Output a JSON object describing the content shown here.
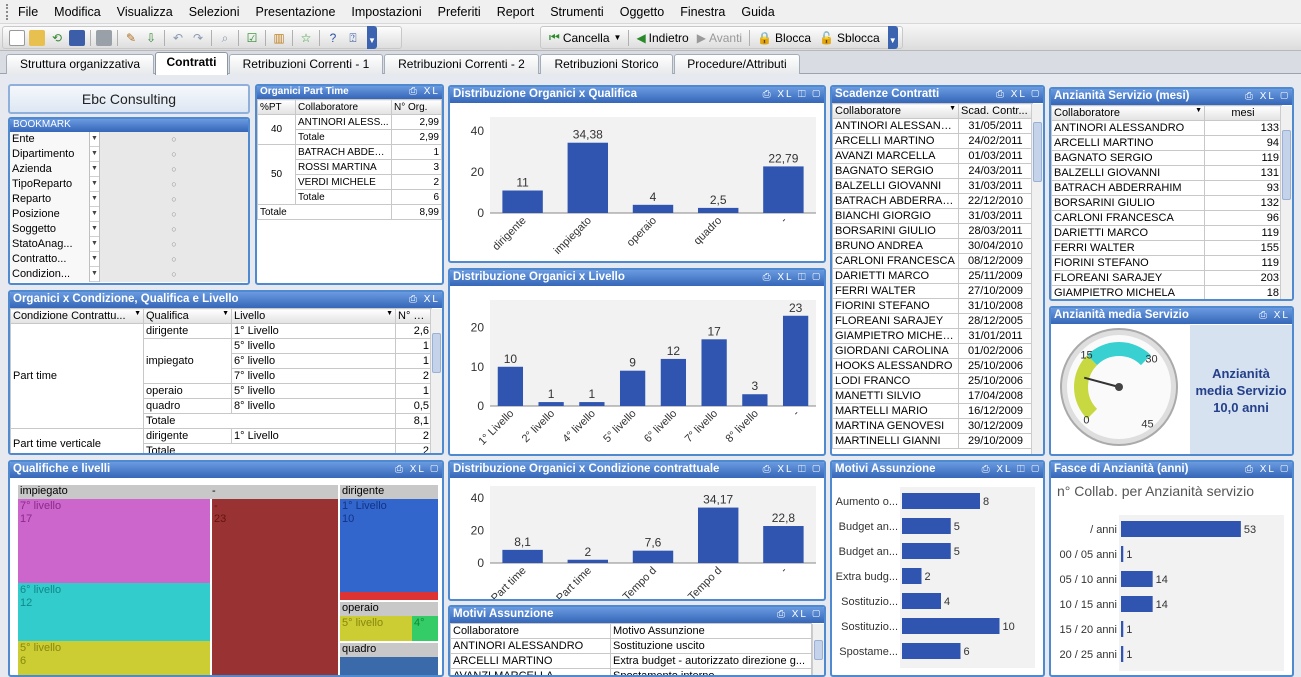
{
  "menu": [
    "File",
    "Modifica",
    "Visualizza",
    "Selezioni",
    "Presentazione",
    "Impostazioni",
    "Preferiti",
    "Report",
    "Strumenti",
    "Oggetto",
    "Finestra",
    "Guida"
  ],
  "toolbar2": {
    "cancella": "Cancella",
    "indietro": "Indietro",
    "avanti": "Avanti",
    "blocca": "Blocca",
    "sblocca": "Sblocca"
  },
  "tabs": [
    "Struttura organizzativa",
    "Contratti",
    "Retribuzioni Correnti - 1",
    "Retribuzioni Correnti - 2",
    "Retribuzioni Storico",
    "Procedure/Attributi"
  ],
  "active_tab": "Contratti",
  "company": "Ebc Consulting",
  "bookmark": {
    "title": "BOOKMARK",
    "items": [
      "Ente",
      "Dipartimento",
      "Azienda",
      "TipoReparto",
      "Reparto",
      "Posizione",
      "Soggetto",
      "StatoAnag...",
      "Contratto...",
      "Condizion..."
    ]
  },
  "part_time": {
    "title": "Organici Part Time",
    "headers": [
      "%PT",
      "Collaboratore",
      "N° Org."
    ],
    "rows": [
      [
        "40",
        "ANTINORI ALESS...",
        "2,99"
      ],
      [
        "",
        "Totale",
        "2,99"
      ],
      [
        "50",
        "BATRACH ABDERR...",
        "1"
      ],
      [
        "",
        "ROSSI MARTINA",
        "3"
      ],
      [
        "",
        "VERDI MICHELE",
        "2"
      ],
      [
        "",
        "Totale",
        "6"
      ]
    ],
    "total_label": "Totale",
    "total_value": "8,99"
  },
  "condizione": {
    "title": "Organici x Condizione, Qualifica e Livello",
    "headers": [
      "Condizione Contrattu...",
      "Qualifica",
      "Livello",
      "N° Org."
    ],
    "g1": "Part time",
    "g2": "Part time verticale",
    "rows": [
      [
        "dirigente",
        "1° Livello",
        "2,6"
      ],
      [
        "impiegato",
        "5° livello",
        "1"
      ],
      [
        "",
        "6° livello",
        "1"
      ],
      [
        "",
        "7° livello",
        "2"
      ],
      [
        "operaio",
        "5° livello",
        "1"
      ],
      [
        "quadro",
        "8° livello",
        "0,5"
      ],
      [
        "Totale",
        "",
        "8,1"
      ],
      [
        "dirigente",
        "1° Livello",
        "2"
      ],
      [
        "Totale",
        "",
        "2"
      ]
    ]
  },
  "qualifiche": {
    "title": "Qualifiche e livelli",
    "blocks": {
      "impiegato": "impiegato",
      "dash": "-",
      "dirigente": "dirigente",
      "l7": "7° livello",
      "v17": "17",
      "d23": "-",
      "v23": "23",
      "l1": "1° Livello",
      "v10": "10",
      "l6": "6° livello",
      "v12": "12",
      "operaio": "operaio",
      "o5": "5° livello",
      "o4": "4°",
      "l5": "5° livello",
      "v6": "6",
      "quadro": "quadro"
    }
  },
  "charts": [
    {
      "id": "qualifica",
      "title": "Distribuzione Organici x Qualifica",
      "type": "bar",
      "categories": [
        "dirigente",
        "impiegato",
        "operaio",
        "quadro",
        "-"
      ],
      "values": [
        11,
        34.38,
        4,
        2.5,
        22.79
      ],
      "labels": [
        "11",
        "34,38",
        "4",
        "2,5",
        "22,79"
      ],
      "ylim": [
        0,
        45
      ],
      "yticks": [
        0,
        20,
        40
      ]
    },
    {
      "id": "livello",
      "title": "Distribuzione Organici x Livello",
      "type": "bar",
      "categories": [
        "1° Livello",
        "2° livello",
        "4° livello",
        "5° livello",
        "6° livello",
        "7° livello",
        "8° livello",
        "-"
      ],
      "values": [
        10,
        1,
        1,
        9,
        12,
        17,
        3,
        23
      ],
      "labels": [
        "10",
        "1",
        "1",
        "9",
        "12",
        "17",
        "3",
        "23"
      ],
      "ylim": [
        0,
        26
      ],
      "yticks": [
        0,
        10,
        20
      ]
    },
    {
      "id": "condizione",
      "title": "Distribuzione Organici x Condizione contrattuale",
      "type": "bar",
      "categories": [
        "Part time",
        "Part time",
        "Tempo d",
        "Tempo d",
        "-"
      ],
      "values": [
        8.1,
        2,
        7.6,
        34.17,
        22.8
      ],
      "labels": [
        "8,1",
        "2",
        "7,6",
        "34,17",
        "22,8"
      ],
      "ylim": [
        0,
        45
      ],
      "yticks": [
        0,
        20,
        40
      ]
    }
  ],
  "scadenze": {
    "title": "Scadenze Contratti",
    "headers": [
      "Collaboratore",
      "Scad. Contr..."
    ],
    "rows": [
      [
        "ANTINORI ALESSANDRO",
        "31/05/2011"
      ],
      [
        "ARCELLI MARTINO",
        "24/02/2011"
      ],
      [
        "AVANZI MARCELLA",
        "01/03/2011"
      ],
      [
        "BAGNATO SERGIO",
        "24/03/2011"
      ],
      [
        "BALZELLI GIOVANNI",
        "31/03/2011"
      ],
      [
        "BATRACH ABDERRAHIM",
        "22/12/2010"
      ],
      [
        "BIANCHI GIORGIO",
        "31/03/2011"
      ],
      [
        "BORSARINI GIULIO",
        "28/03/2011"
      ],
      [
        "BRUNO ANDREA",
        "30/04/2010"
      ],
      [
        "CARLONI FRANCESCA",
        "08/12/2009"
      ],
      [
        "DARIETTI MARCO",
        "25/11/2009"
      ],
      [
        "FERRI WALTER",
        "27/10/2009"
      ],
      [
        "FIORINI STEFANO",
        "31/10/2008"
      ],
      [
        "FLOREANI SARAJEY",
        "28/12/2005"
      ],
      [
        "GIAMPIETRO MICHELA",
        "31/01/2011"
      ],
      [
        "GIORDANI CAROLINA",
        "01/02/2006"
      ],
      [
        "HOOKS ALESSANDRO",
        "25/10/2006"
      ],
      [
        "LODI FRANCO",
        "25/10/2006"
      ],
      [
        "MANETTI SILVIO",
        "17/04/2008"
      ],
      [
        "MARTELLI MARIO",
        "16/12/2009"
      ],
      [
        "MARTINA GENOVESI",
        "30/12/2009"
      ],
      [
        "MARTINELLI GIANNI",
        "29/10/2009"
      ]
    ]
  },
  "anzianita": {
    "title": "Anzianità Servizio (mesi)",
    "headers": [
      "Collaboratore",
      "mesi"
    ],
    "rows": [
      [
        "ANTINORI ALESSANDRO",
        "133"
      ],
      [
        "ARCELLI MARTINO",
        "94"
      ],
      [
        "BAGNATO SERGIO",
        "119"
      ],
      [
        "BALZELLI GIOVANNI",
        "131"
      ],
      [
        "BATRACH ABDERRAHIM",
        "93"
      ],
      [
        "BORSARINI GIULIO",
        "132"
      ],
      [
        "CARLONI FRANCESCA",
        "96"
      ],
      [
        "DARIETTI MARCO",
        "119"
      ],
      [
        "FERRI WALTER",
        "155"
      ],
      [
        "FIORINI STEFANO",
        "119"
      ],
      [
        "FLOREANI SARAJEY",
        "203"
      ],
      [
        "GIAMPIETRO MICHELA",
        "18"
      ]
    ]
  },
  "media": {
    "title": "Anzianità media Servizio",
    "gauge_ticks": [
      "0",
      "15",
      "30",
      "45"
    ],
    "text1": "Anzianità",
    "text2": "media Servizio",
    "text3": "10,0 anni",
    "value": 10,
    "max": 45
  },
  "motivi_chart": {
    "title": "Motivi Assunzione",
    "categories": [
      "Aumento o...",
      "Budget an...",
      "Budget an...",
      "Extra budg...",
      "Sostituzio...",
      "Sostituzio...",
      "Spostame..."
    ],
    "values": [
      8,
      5,
      5,
      2,
      4,
      10,
      6
    ],
    "labels": [
      "8",
      "5",
      "5",
      "2",
      "4",
      "10",
      "6"
    ],
    "xlim": [
      0,
      12
    ]
  },
  "fasce": {
    "title": "Fasce di Anzianità (anni)",
    "subtitle": "n° Collab. per Anzianità servizio",
    "categories": [
      "/ anni",
      "00 / 05 anni",
      "05 / 10 anni",
      "10 / 15 anni",
      "15 / 20 anni",
      "20 / 25 anni"
    ],
    "values": [
      53,
      1,
      14,
      14,
      1,
      1
    ],
    "labels": [
      "53",
      "1",
      "14",
      "14",
      "1",
      "1"
    ],
    "xlim": [
      0,
      65
    ]
  },
  "motivi_table": {
    "title": "Motivi Assunzione",
    "headers": [
      "Collaboratore",
      "Motivo Assunzione"
    ],
    "rows": [
      [
        "ANTINORI ALESSANDRO",
        "Sostituzione uscito"
      ],
      [
        "ARCELLI MARTINO",
        "Extra budget - autorizzato direzione g..."
      ],
      [
        "AVANZI MARCELLA",
        "Spostamento interno"
      ]
    ]
  },
  "colors": {
    "bar": "#2f55b0",
    "title": "#3566b8",
    "border": "#4f8ad1"
  }
}
